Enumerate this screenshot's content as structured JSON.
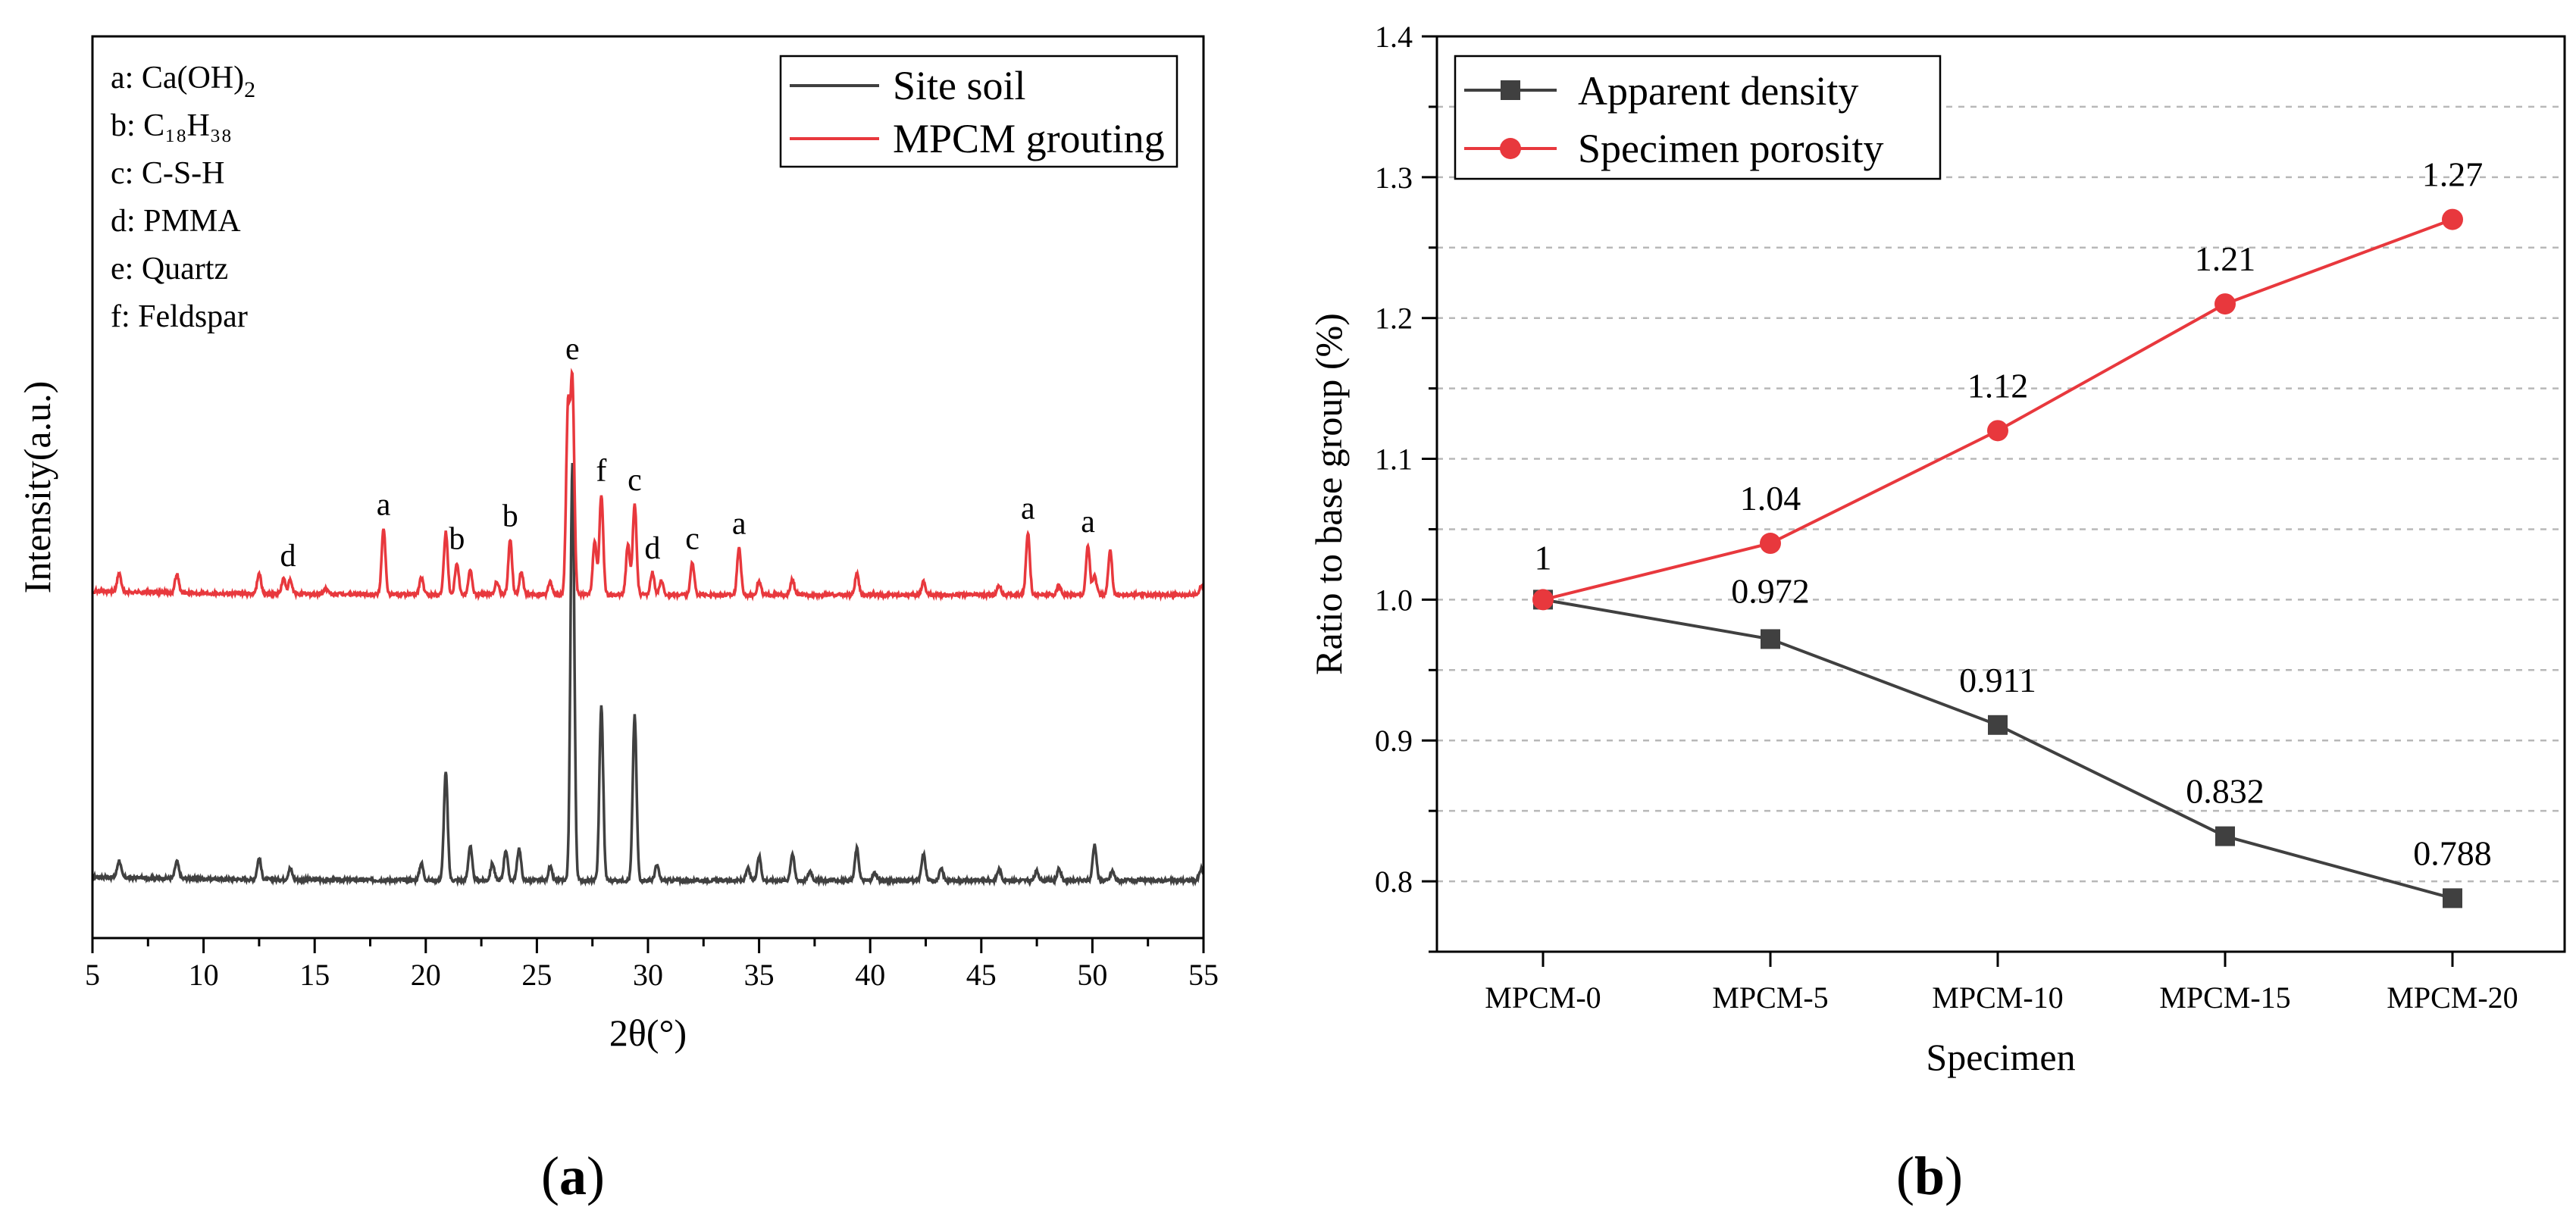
{
  "chart_data": [
    {
      "panel": "(a)",
      "type": "line",
      "xlabel": "2θ(°)",
      "ylabel": "Intensity(a.u.)",
      "xlim": [
        5,
        55
      ],
      "xticks": [
        "5",
        "10",
        "15",
        "20",
        "25",
        "30",
        "35",
        "40",
        "45",
        "50",
        "55"
      ],
      "series": [
        {
          "name": "Site soil",
          "color": "#404040"
        },
        {
          "name": "MPCM grouting",
          "color": "#e8383d"
        }
      ],
      "phase_key": [
        {
          "letter": "a",
          "phase": "Ca(OH)",
          "subscript": "2"
        },
        {
          "letter": "b",
          "phase": "C₁₈H₃₈"
        },
        {
          "letter": "c",
          "phase": "C-S-H"
        },
        {
          "letter": "d",
          "phase": "PMMA"
        },
        {
          "letter": "e",
          "phase": "Quartz"
        },
        {
          "letter": "f",
          "phase": "Feldspar"
        }
      ],
      "peak_labels": [
        {
          "label": "d",
          "x": 13.8
        },
        {
          "label": "a",
          "x": 18.1
        },
        {
          "label": "b",
          "x": 21.4
        },
        {
          "label": "b",
          "x": 23.8
        },
        {
          "label": "e",
          "x": 26.6
        },
        {
          "label": "f",
          "x": 27.9
        },
        {
          "label": "c",
          "x": 29.4
        },
        {
          "label": "d",
          "x": 30.2
        },
        {
          "label": "c",
          "x": 32.0
        },
        {
          "label": "a",
          "x": 34.1
        },
        {
          "label": "a",
          "x": 47.1
        },
        {
          "label": "a",
          "x": 49.8
        }
      ],
      "peaks_site_soil": [
        [
          6.2,
          0.09
        ],
        [
          8.8,
          0.09
        ],
        [
          12.5,
          0.11
        ],
        [
          13.9,
          0.06
        ],
        [
          19.8,
          0.09
        ],
        [
          20.9,
          0.57
        ],
        [
          22.0,
          0.18
        ],
        [
          23.0,
          0.09
        ],
        [
          23.6,
          0.16
        ],
        [
          24.2,
          0.17
        ],
        [
          25.6,
          0.07
        ],
        [
          26.6,
          2.2
        ],
        [
          27.9,
          0.92
        ],
        [
          29.4,
          0.87
        ],
        [
          30.4,
          0.08
        ],
        [
          34.5,
          0.06
        ],
        [
          35.0,
          0.13
        ],
        [
          36.5,
          0.14
        ],
        [
          37.3,
          0.05
        ],
        [
          39.4,
          0.17
        ],
        [
          40.2,
          0.04
        ],
        [
          42.4,
          0.14
        ],
        [
          43.2,
          0.06
        ],
        [
          45.8,
          0.06
        ],
        [
          47.5,
          0.05
        ],
        [
          48.5,
          0.06
        ],
        [
          50.1,
          0.19
        ],
        [
          50.9,
          0.05
        ],
        [
          54.9,
          0.06
        ]
      ],
      "peaks_mpcm": [
        [
          6.2,
          0.1
        ],
        [
          8.8,
          0.1
        ],
        [
          12.5,
          0.11
        ],
        [
          13.6,
          0.08
        ],
        [
          13.9,
          0.07
        ],
        [
          15.5,
          0.03
        ],
        [
          18.1,
          0.35
        ],
        [
          19.8,
          0.09
        ],
        [
          20.9,
          0.33
        ],
        [
          21.4,
          0.17
        ],
        [
          22.0,
          0.13
        ],
        [
          23.2,
          0.07
        ],
        [
          23.8,
          0.29
        ],
        [
          24.3,
          0.12
        ],
        [
          25.6,
          0.07
        ],
        [
          26.4,
          0.96
        ],
        [
          26.6,
          1.1
        ],
        [
          27.6,
          0.28
        ],
        [
          27.9,
          0.53
        ],
        [
          29.1,
          0.27
        ],
        [
          29.4,
          0.48
        ],
        [
          30.2,
          0.12
        ],
        [
          30.6,
          0.07
        ],
        [
          32.0,
          0.17
        ],
        [
          34.1,
          0.25
        ],
        [
          35.0,
          0.07
        ],
        [
          36.5,
          0.08
        ],
        [
          39.4,
          0.11
        ],
        [
          42.4,
          0.07
        ],
        [
          45.8,
          0.05
        ],
        [
          47.1,
          0.33
        ],
        [
          48.5,
          0.05
        ],
        [
          49.8,
          0.26
        ],
        [
          50.1,
          0.1
        ],
        [
          50.8,
          0.23
        ],
        [
          54.9,
          0.05
        ]
      ]
    },
    {
      "panel": "(b)",
      "type": "line",
      "xlabel": "Specimen",
      "ylabel": "Ratio to base group (%)",
      "ylim": [
        0.75,
        1.4
      ],
      "yticks": [
        "0.8",
        "0.9",
        "1.0",
        "1.1",
        "1.2",
        "1.3",
        "1.4"
      ],
      "categories": [
        "MPCM-0",
        "MPCM-5",
        "MPCM-10",
        "MPCM-15",
        "MPCM-20"
      ],
      "grid": true,
      "legend_position": "top-left",
      "series": [
        {
          "name": "Apparent density",
          "marker": "square",
          "color": "#404040",
          "values": [
            1.0,
            0.972,
            0.911,
            0.832,
            0.788
          ],
          "labels": [
            "",
            "0.972",
            "0.911",
            "0.832",
            "0.788"
          ]
        },
        {
          "name": "Specimen porosity",
          "marker": "circle",
          "color": "#e8383d",
          "values": [
            1.0,
            1.04,
            1.12,
            1.21,
            1.27
          ],
          "labels": [
            "1",
            "1.04",
            "1.12",
            "1.21",
            "1.27"
          ]
        }
      ]
    }
  ]
}
